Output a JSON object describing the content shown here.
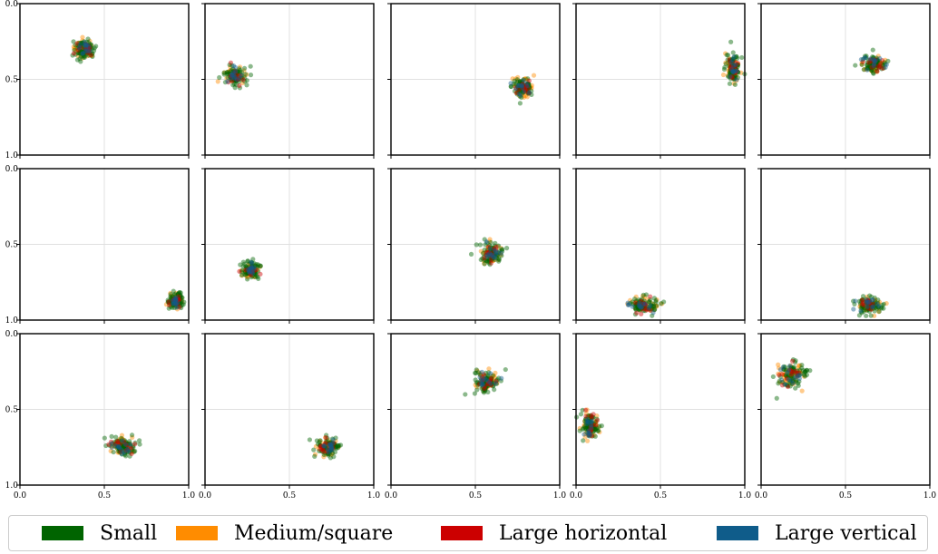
{
  "chart_data": {
    "type": "scatter",
    "layout": "3x5 grid of small multiples",
    "xlim": [
      0.0,
      1.0
    ],
    "ylim": [
      1.0,
      0.0
    ],
    "y_inverted": true,
    "xticks": [
      "0.0",
      "0.5",
      "1.0"
    ],
    "yticks": [
      "0.0",
      "0.5",
      "1.0"
    ],
    "grid": true,
    "legend_position": "bottom",
    "series": [
      {
        "name": "Small",
        "color": "#006400"
      },
      {
        "name": "Medium/square",
        "color": "#ff8c00"
      },
      {
        "name": "Large horizontal",
        "color": "#cc0000"
      },
      {
        "name": "Large vertical",
        "color": "#0f5c8a"
      }
    ],
    "panels": [
      {
        "cx": 0.38,
        "cy": 0.3,
        "rx": 0.06,
        "ry": 0.06
      },
      {
        "cx": 0.18,
        "cy": 0.48,
        "rx": 0.06,
        "ry": 0.06
      },
      {
        "cx": 0.78,
        "cy": 0.55,
        "rx": 0.06,
        "ry": 0.06
      },
      {
        "cx": 0.93,
        "cy": 0.43,
        "rx": 0.04,
        "ry": 0.08
      },
      {
        "cx": 0.67,
        "cy": 0.4,
        "rx": 0.07,
        "ry": 0.06
      },
      {
        "cx": 0.92,
        "cy": 0.87,
        "rx": 0.04,
        "ry": 0.05
      },
      {
        "cx": 0.27,
        "cy": 0.67,
        "rx": 0.05,
        "ry": 0.05
      },
      {
        "cx": 0.6,
        "cy": 0.56,
        "rx": 0.06,
        "ry": 0.06
      },
      {
        "cx": 0.4,
        "cy": 0.9,
        "rx": 0.08,
        "ry": 0.05
      },
      {
        "cx": 0.64,
        "cy": 0.9,
        "rx": 0.07,
        "ry": 0.05
      },
      {
        "cx": 0.6,
        "cy": 0.74,
        "rx": 0.07,
        "ry": 0.06
      },
      {
        "cx": 0.73,
        "cy": 0.75,
        "rx": 0.06,
        "ry": 0.06
      },
      {
        "cx": 0.57,
        "cy": 0.32,
        "rx": 0.07,
        "ry": 0.07
      },
      {
        "cx": 0.08,
        "cy": 0.61,
        "rx": 0.05,
        "ry": 0.08
      },
      {
        "cx": 0.18,
        "cy": 0.27,
        "rx": 0.08,
        "ry": 0.08
      }
    ]
  }
}
